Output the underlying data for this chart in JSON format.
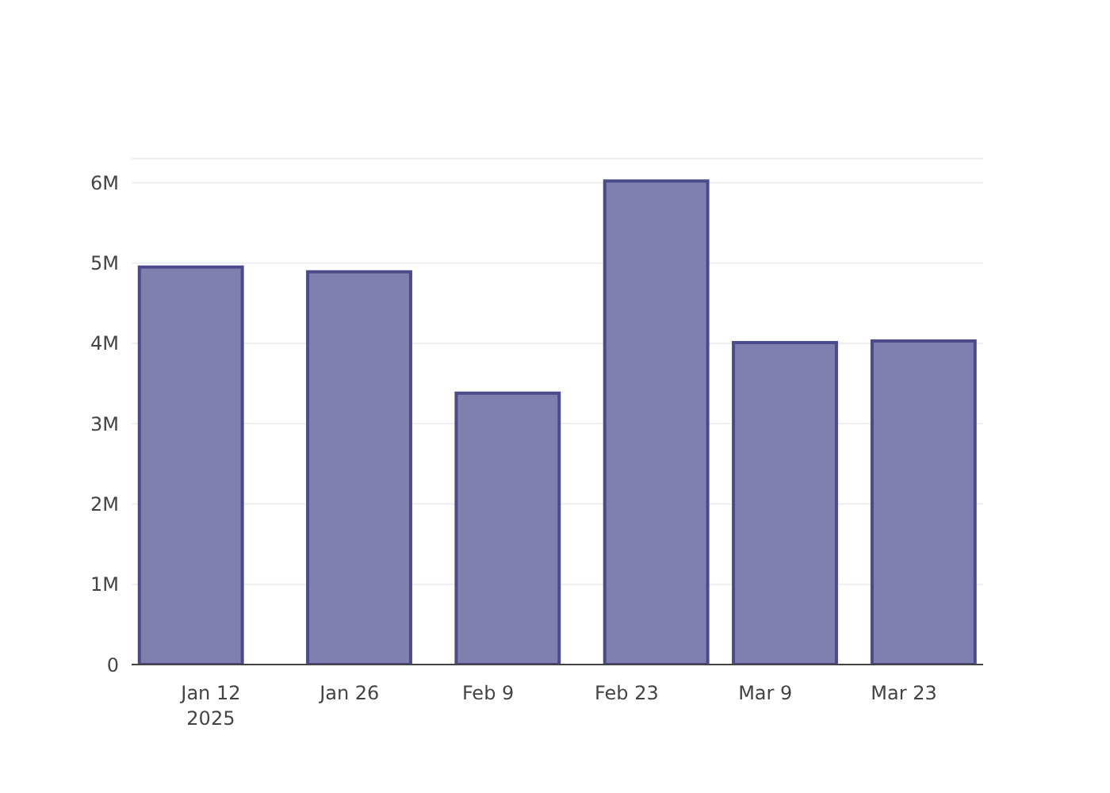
{
  "chart_data": {
    "type": "bar",
    "x": [
      "2025-01-10",
      "2025-01-27",
      "2025-02-11",
      "2025-02-26",
      "2025-03-11",
      "2025-03-25"
    ],
    "values": [
      4950000,
      4890000,
      3380000,
      6020000,
      4010000,
      4030000
    ],
    "color": "#8080b0",
    "xlim": [
      "2025-01-04",
      "2025-03-31"
    ],
    "xticks": [
      {
        "value": "2025-01-12",
        "label": "Jan 12\n2025"
      },
      {
        "value": "2025-01-26",
        "label": "Jan 26"
      },
      {
        "value": "2025-02-09",
        "label": "Feb 9"
      },
      {
        "value": "2025-02-23",
        "label": "Feb 23"
      },
      {
        "value": "2025-03-09",
        "label": "Mar 9"
      },
      {
        "value": "2025-03-23",
        "label": "Mar 23"
      }
    ],
    "ylim": [
      0,
      6300000
    ],
    "yticks": [
      {
        "value": 0,
        "label": "0"
      },
      {
        "value": 1000000,
        "label": "1M"
      },
      {
        "value": 2000000,
        "label": "2M"
      },
      {
        "value": 3000000,
        "label": "3M"
      },
      {
        "value": 4000000,
        "label": "4M"
      },
      {
        "value": 5000000,
        "label": "5M"
      },
      {
        "value": 6000000,
        "label": "6M"
      }
    ],
    "grid": "y"
  }
}
